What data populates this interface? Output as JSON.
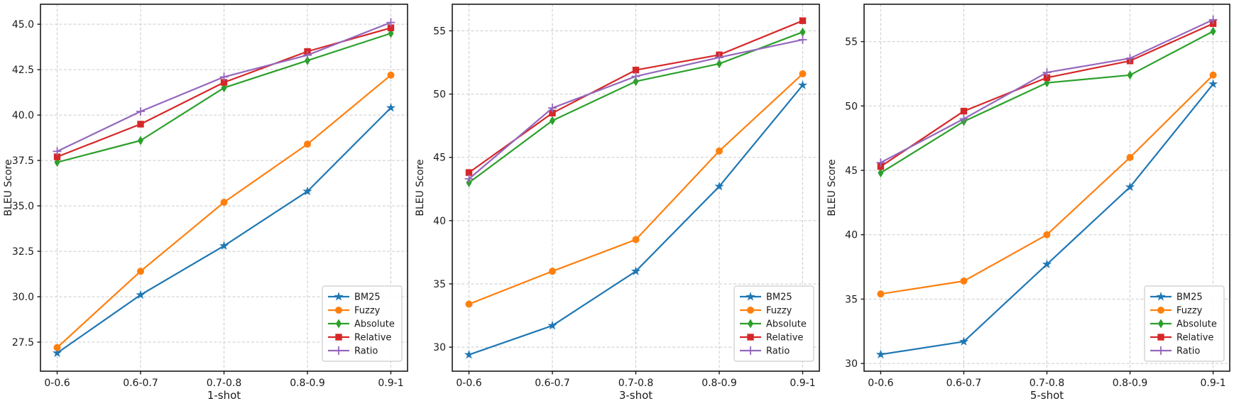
{
  "figure": {
    "ylabel": "BLEU Score",
    "categories": [
      "0-0.6",
      "0.6-0.7",
      "0.7-0.8",
      "0.8-0.9",
      "0.9-1"
    ],
    "legend_labels": [
      "BM25",
      "Fuzzy",
      "Absolute",
      "Relative",
      "Ratio"
    ],
    "colors": {
      "BM25": "#1f77b4",
      "Fuzzy": "#ff7f0e",
      "Absolute": "#2ca02c",
      "Relative": "#d62728",
      "Ratio": "#9467bd"
    },
    "grid_color": "#cbcbcb",
    "axis_color": "#1a1a1a",
    "legend_border_color": "#cccccc"
  },
  "series_styles": [
    {
      "name": "BM25",
      "color": "#1f77b4",
      "marker": "star"
    },
    {
      "name": "Fuzzy",
      "color": "#ff7f0e",
      "marker": "circle"
    },
    {
      "name": "Absolute",
      "color": "#2ca02c",
      "marker": "thin-diamond"
    },
    {
      "name": "Relative",
      "color": "#d62728",
      "marker": "square"
    },
    {
      "name": "Ratio",
      "color": "#9467bd",
      "marker": "plus"
    }
  ],
  "chart_data": [
    {
      "type": "line",
      "xlabel": "1-shot",
      "ylabel": "BLEU Score",
      "categories": [
        "0-0.6",
        "0.6-0.7",
        "0.7-0.8",
        "0.8-0.9",
        "0.9-1"
      ],
      "series": [
        {
          "name": "BM25",
          "values": [
            26.9,
            30.1,
            32.8,
            35.8,
            40.4
          ]
        },
        {
          "name": "Fuzzy",
          "values": [
            27.2,
            31.4,
            35.2,
            38.4,
            42.2
          ]
        },
        {
          "name": "Absolute",
          "values": [
            37.4,
            38.6,
            41.5,
            43.0,
            44.5
          ]
        },
        {
          "name": "Relative",
          "values": [
            37.7,
            39.5,
            41.8,
            43.5,
            44.8
          ]
        },
        {
          "name": "Ratio",
          "values": [
            38.0,
            40.2,
            42.1,
            43.3,
            45.1
          ]
        }
      ],
      "ylim": [
        25.9,
        46.1
      ],
      "ytick_values": [
        27.5,
        30.0,
        32.5,
        35.0,
        37.5,
        40.0,
        42.5,
        45.0
      ],
      "ytick_labels": [
        "27.5",
        "30.0",
        "32.5",
        "35.0",
        "37.5",
        "40.0",
        "42.5",
        "45.0"
      ],
      "grid": true,
      "legend_position": "lower right"
    },
    {
      "type": "line",
      "xlabel": "3-shot",
      "ylabel": "BLEU Score",
      "categories": [
        "0-0.6",
        "0.6-0.7",
        "0.7-0.8",
        "0.8-0.9",
        "0.9-1"
      ],
      "series": [
        {
          "name": "BM25",
          "values": [
            29.4,
            31.7,
            36.0,
            42.7,
            50.7
          ]
        },
        {
          "name": "Fuzzy",
          "values": [
            33.4,
            36.0,
            38.5,
            45.5,
            51.6
          ]
        },
        {
          "name": "Absolute",
          "values": [
            43.0,
            47.9,
            51.0,
            52.4,
            54.9
          ]
        },
        {
          "name": "Relative",
          "values": [
            43.8,
            48.5,
            51.9,
            53.1,
            55.8
          ]
        },
        {
          "name": "Ratio",
          "values": [
            43.3,
            48.9,
            51.4,
            52.9,
            54.3
          ]
        }
      ],
      "ylim": [
        28.1,
        57.1
      ],
      "ytick_values": [
        30,
        35,
        40,
        45,
        50,
        55
      ],
      "ytick_labels": [
        "30",
        "35",
        "40",
        "45",
        "50",
        "55"
      ],
      "grid": true,
      "legend_position": "lower right"
    },
    {
      "type": "line",
      "xlabel": "5-shot",
      "ylabel": "BLEU Score",
      "categories": [
        "0-0.6",
        "0.6-0.7",
        "0.7-0.8",
        "0.8-0.9",
        "0.9-1"
      ],
      "series": [
        {
          "name": "BM25",
          "values": [
            30.7,
            31.7,
            37.7,
            43.7,
            51.7
          ]
        },
        {
          "name": "Fuzzy",
          "values": [
            35.4,
            36.4,
            40.0,
            46.0,
            52.4
          ]
        },
        {
          "name": "Absolute",
          "values": [
            44.8,
            48.8,
            51.8,
            52.4,
            55.8
          ]
        },
        {
          "name": "Relative",
          "values": [
            45.3,
            49.6,
            52.2,
            53.5,
            56.4
          ]
        },
        {
          "name": "Ratio",
          "values": [
            45.6,
            49.0,
            52.6,
            53.7,
            56.7
          ]
        }
      ],
      "ylim": [
        29.4,
        57.9
      ],
      "ytick_values": [
        30,
        35,
        40,
        45,
        50,
        55
      ],
      "ytick_labels": [
        "30",
        "35",
        "40",
        "45",
        "50",
        "55"
      ],
      "grid": true,
      "legend_position": "lower right"
    }
  ]
}
